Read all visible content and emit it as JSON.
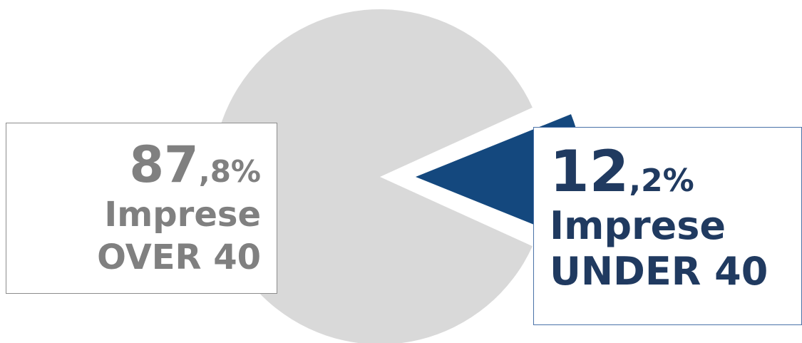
{
  "chart_data": {
    "type": "pie",
    "slices": [
      {
        "label": "Impresse OVER 40",
        "value": 87.8,
        "color": "#d9d9d9",
        "pct_integer": "87",
        "pct_decimal": ",8%",
        "line1": "Imprese",
        "line2": "OVER 40"
      },
      {
        "label": "Imprese UNDER 40",
        "value": 12.2,
        "color": "#14487e",
        "pct_integer": "12",
        "pct_decimal": ",2%",
        "line1": "Imprese",
        "line2": "UNDER 40"
      }
    ]
  }
}
